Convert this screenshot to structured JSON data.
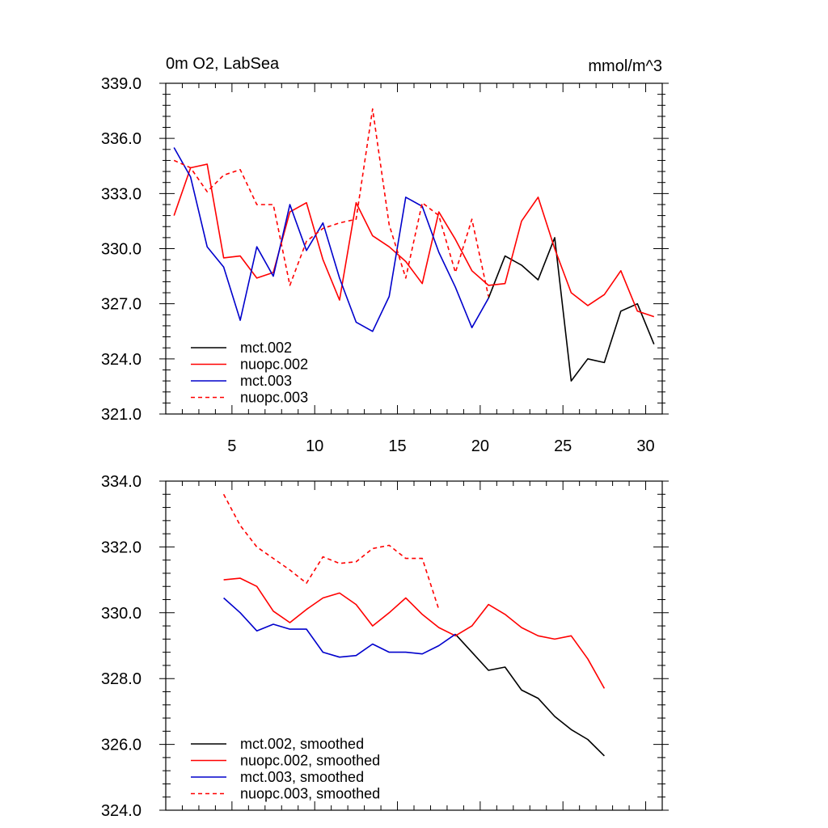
{
  "chart_data": [
    {
      "type": "line",
      "title_left": "0m O2, LabSea",
      "title_right": "mmol/m^3",
      "xlabel": "",
      "ylabel": "",
      "xlim": [
        1,
        31
      ],
      "ylim": [
        321,
        339
      ],
      "x_ticks": [
        5,
        10,
        15,
        20,
        25,
        30
      ],
      "x_tick_labels": [
        "5",
        "10",
        "15",
        "20",
        "25",
        "30"
      ],
      "y_ticks": [
        321,
        324,
        327,
        330,
        333,
        336,
        339
      ],
      "y_tick_labels": [
        "321.0",
        "324.0",
        "327.0",
        "330.0",
        "333.0",
        "336.0",
        "339.0"
      ],
      "legend_position": "bottom-left",
      "series": [
        {
          "name": "mct.002",
          "color": "#000000",
          "dash": "solid",
          "x": [
            20.5,
            21.5,
            22.5,
            23.5,
            24.5,
            25.5,
            26.5,
            27.5,
            28.5,
            29.5,
            30.5
          ],
          "y": [
            327.3,
            329.6,
            329.1,
            328.3,
            330.6,
            322.8,
            324.0,
            323.8,
            326.6,
            327.0,
            324.8
          ]
        },
        {
          "name": "nuopc.002",
          "color": "#ff0000",
          "dash": "solid",
          "x": [
            1.5,
            2.5,
            3.5,
            4.5,
            5.5,
            6.5,
            7.5,
            8.5,
            9.5,
            10.5,
            11.5,
            12.5,
            13.5,
            14.5,
            15.5,
            16.5,
            17.5,
            18.5,
            19.5,
            20.5,
            21.5,
            22.5,
            23.5,
            24.5,
            25.5,
            26.5,
            27.5,
            28.5,
            29.5,
            30.5
          ],
          "y": [
            331.8,
            334.4,
            334.6,
            329.5,
            329.6,
            328.4,
            328.7,
            332.0,
            332.5,
            329.4,
            327.2,
            332.5,
            330.7,
            330.1,
            329.3,
            328.1,
            332.0,
            330.5,
            328.8,
            328.0,
            328.1,
            331.5,
            332.8,
            330.0,
            327.6,
            326.9,
            327.5,
            328.8,
            326.6,
            326.3
          ]
        },
        {
          "name": "mct.003",
          "color": "#0000cc",
          "dash": "solid",
          "x": [
            1.5,
            2.5,
            3.5,
            4.5,
            5.5,
            6.5,
            7.5,
            8.5,
            9.5,
            10.5,
            11.5,
            12.5,
            13.5,
            14.5,
            15.5,
            16.5,
            17.5,
            18.5,
            19.5,
            20.5
          ],
          "y": [
            335.5,
            333.9,
            330.1,
            329.0,
            326.1,
            330.1,
            328.5,
            332.4,
            329.9,
            331.4,
            328.4,
            326.0,
            325.5,
            327.4,
            332.8,
            332.3,
            329.8,
            327.9,
            325.7,
            327.3
          ]
        },
        {
          "name": "nuopc.003",
          "color": "#ff0000",
          "dash": "dashed",
          "x": [
            1.5,
            2.5,
            3.5,
            4.5,
            5.5,
            6.5,
            7.5,
            8.5,
            9.5,
            10.5,
            11.5,
            12.5,
            13.5,
            14.5,
            15.5,
            16.5,
            17.5,
            18.5,
            19.5,
            20.5
          ],
          "y": [
            334.8,
            334.4,
            333.1,
            334.0,
            334.3,
            332.4,
            332.4,
            328.0,
            330.4,
            331.1,
            331.4,
            331.6,
            337.6,
            331.3,
            328.4,
            332.5,
            331.8,
            328.7,
            331.6,
            327.4
          ]
        }
      ]
    },
    {
      "type": "line",
      "xlabel": "",
      "ylabel": "",
      "xlim": [
        1,
        31
      ],
      "ylim": [
        324,
        334
      ],
      "x_ticks": [
        5,
        10,
        15,
        20,
        25,
        30
      ],
      "x_tick_labels": [],
      "y_ticks": [
        324,
        326,
        328,
        330,
        332,
        334
      ],
      "y_tick_labels": [
        "324.0",
        "326.0",
        "328.0",
        "330.0",
        "332.0",
        "334.0"
      ],
      "legend_position": "bottom-left",
      "series": [
        {
          "name": "mct.002, smoothed",
          "color": "#000000",
          "dash": "solid",
          "x": [
            18.5,
            19.5,
            20.5,
            21.5,
            22.5,
            23.5,
            24.5,
            25.5,
            26.5,
            27.5
          ],
          "y": [
            329.35,
            328.8,
            328.25,
            328.35,
            327.65,
            327.4,
            326.85,
            326.45,
            326.15,
            325.65
          ]
        },
        {
          "name": "nuopc.002, smoothed",
          "color": "#ff0000",
          "dash": "solid",
          "x": [
            4.5,
            5.5,
            6.5,
            7.5,
            8.5,
            9.5,
            10.5,
            11.5,
            12.5,
            13.5,
            14.5,
            15.5,
            16.5,
            17.5,
            18.5,
            19.5,
            20.5,
            21.5,
            22.5,
            23.5,
            24.5,
            25.5,
            26.5,
            27.5
          ],
          "y": [
            331.0,
            331.05,
            330.8,
            330.05,
            329.7,
            330.1,
            330.45,
            330.6,
            330.25,
            329.6,
            330.0,
            330.45,
            329.95,
            329.55,
            329.3,
            329.6,
            330.25,
            329.95,
            329.55,
            329.3,
            329.2,
            329.3,
            328.6,
            327.7
          ]
        },
        {
          "name": "mct.003, smoothed",
          "color": "#0000cc",
          "dash": "solid",
          "x": [
            4.5,
            5.5,
            6.5,
            7.5,
            8.5,
            9.5,
            10.5,
            11.5,
            12.5,
            13.5,
            14.5,
            15.5,
            16.5,
            17.5,
            18.5
          ],
          "y": [
            330.45,
            330.0,
            329.45,
            329.65,
            329.5,
            329.5,
            328.8,
            328.65,
            328.7,
            329.05,
            328.8,
            328.8,
            328.75,
            329.0,
            329.35
          ]
        },
        {
          "name": "nuopc.003, smoothed",
          "color": "#ff0000",
          "dash": "dashed",
          "x": [
            4.5,
            5.5,
            6.5,
            7.5,
            8.5,
            9.5,
            10.5,
            11.5,
            12.5,
            13.5,
            14.5,
            15.5,
            16.5,
            17.5
          ],
          "y": [
            333.6,
            332.65,
            332.0,
            331.65,
            331.3,
            330.9,
            331.7,
            331.5,
            331.55,
            331.95,
            332.05,
            331.65,
            331.65,
            330.1
          ]
        }
      ]
    }
  ]
}
